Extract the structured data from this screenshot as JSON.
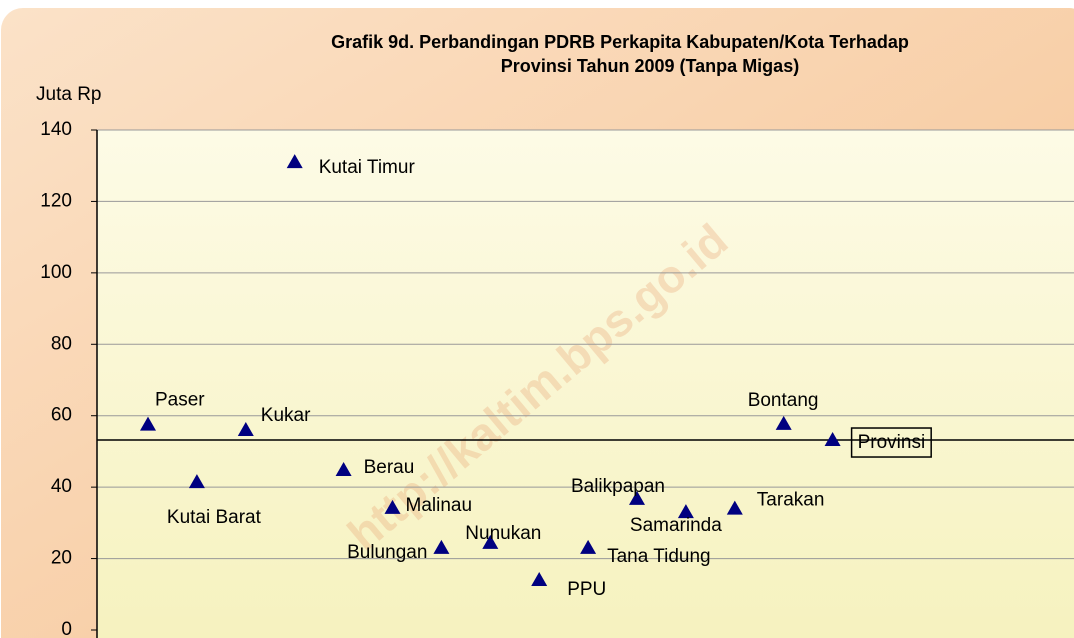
{
  "chart_data": {
    "type": "scatter",
    "title": [
      "Grafik 9d. Perbandingan  PDRB Perkapita  Kabupaten/Kota Terhadap",
      "Provinsi  Tahun 2009 (Tanpa Migas)"
    ],
    "y_label": "Juta Rp",
    "watermark": "http://kaltim.bps.go.id",
    "categories": [
      "Paser",
      "Kutai Barat",
      "Kukar",
      "Kutai Timur",
      "Berau",
      "Malinau",
      "Bulungan",
      "Nunukan",
      "PPU",
      "Tana Tidung",
      "Balikpapan",
      "Samarinda",
      "Tarakan",
      "Bontang",
      "Provinsi"
    ],
    "values": [
      57.5,
      41.4,
      56,
      131,
      44.8,
      34.2,
      23,
      24.4,
      14,
      23,
      36.7,
      33,
      34,
      57.7,
      53.2
    ],
    "color": "#000080",
    "ylim": [
      0,
      140
    ],
    "yticks": [
      0,
      20,
      40,
      60,
      80,
      100,
      120,
      140
    ],
    "grid": true
  }
}
